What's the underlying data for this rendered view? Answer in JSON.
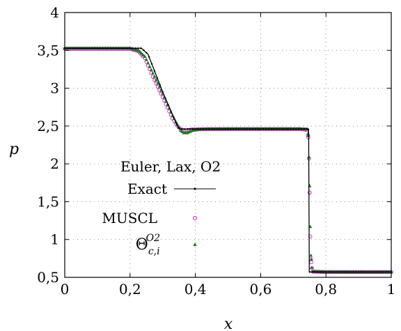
{
  "chart_data": {
    "type": "line",
    "title": "",
    "xlabel": "x",
    "ylabel": "p",
    "xlim": [
      0,
      1
    ],
    "ylim": [
      0.5,
      4
    ],
    "x_ticks": [
      0,
      0.2,
      0.4,
      0.6,
      0.8,
      1
    ],
    "x_tick_labels": [
      "0",
      "0,2",
      "0,4",
      "0,6",
      "0,8",
      "1"
    ],
    "y_ticks": [
      0.5,
      1,
      1.5,
      2,
      2.5,
      3,
      3.5,
      4
    ],
    "y_tick_labels": [
      "0,5",
      "1",
      "1,5",
      "2",
      "2,5",
      "3",
      "3,5",
      "4"
    ],
    "grid": true,
    "legend_placement": "center-left",
    "legend_title": "Euler, Lax, O2",
    "colors": {
      "exact": "#000000",
      "muscl": "#c81ec8",
      "theta": "#1e781e"
    },
    "series": [
      {
        "name": "Exact",
        "marker": "dot-line",
        "x": [
          0.0,
          0.235,
          0.255,
          0.3,
          0.345,
          0.353,
          0.747,
          0.748,
          0.749,
          1.0
        ],
        "y": [
          3.528,
          3.528,
          3.45,
          2.95,
          2.5,
          2.46,
          2.46,
          1.5,
          0.571,
          0.571
        ]
      },
      {
        "name": "MUSCL",
        "marker": "circle",
        "x": [
          0.0,
          0.2,
          0.225,
          0.245,
          0.27,
          0.3,
          0.33,
          0.345,
          0.355,
          0.365,
          0.375,
          0.39,
          0.45,
          0.55,
          0.65,
          0.72,
          0.742,
          0.746,
          0.748,
          0.75,
          0.752,
          0.754,
          0.757,
          0.76,
          0.8,
          1.0
        ],
        "y": [
          3.52,
          3.52,
          3.49,
          3.4,
          3.15,
          2.88,
          2.6,
          2.5,
          2.46,
          2.44,
          2.445,
          2.455,
          2.46,
          2.46,
          2.46,
          2.46,
          2.45,
          2.35,
          2.07,
          1.62,
          1.04,
          0.74,
          0.62,
          0.575,
          0.57,
          0.57
        ]
      },
      {
        "name": "Θ_{c,i}^{O2}",
        "marker": "triangle",
        "x": [
          0.0,
          0.2,
          0.225,
          0.245,
          0.27,
          0.3,
          0.33,
          0.345,
          0.355,
          0.365,
          0.375,
          0.39,
          0.42,
          0.5,
          0.6,
          0.72,
          0.742,
          0.746,
          0.748,
          0.75,
          0.752,
          0.754,
          0.757,
          0.76,
          0.8,
          1.0
        ],
        "y": [
          3.53,
          3.53,
          3.5,
          3.42,
          3.2,
          2.93,
          2.64,
          2.52,
          2.44,
          2.41,
          2.41,
          2.44,
          2.46,
          2.465,
          2.465,
          2.465,
          2.46,
          2.38,
          2.09,
          1.71,
          1.17,
          0.79,
          0.63,
          0.58,
          0.572,
          0.572
        ]
      }
    ]
  }
}
